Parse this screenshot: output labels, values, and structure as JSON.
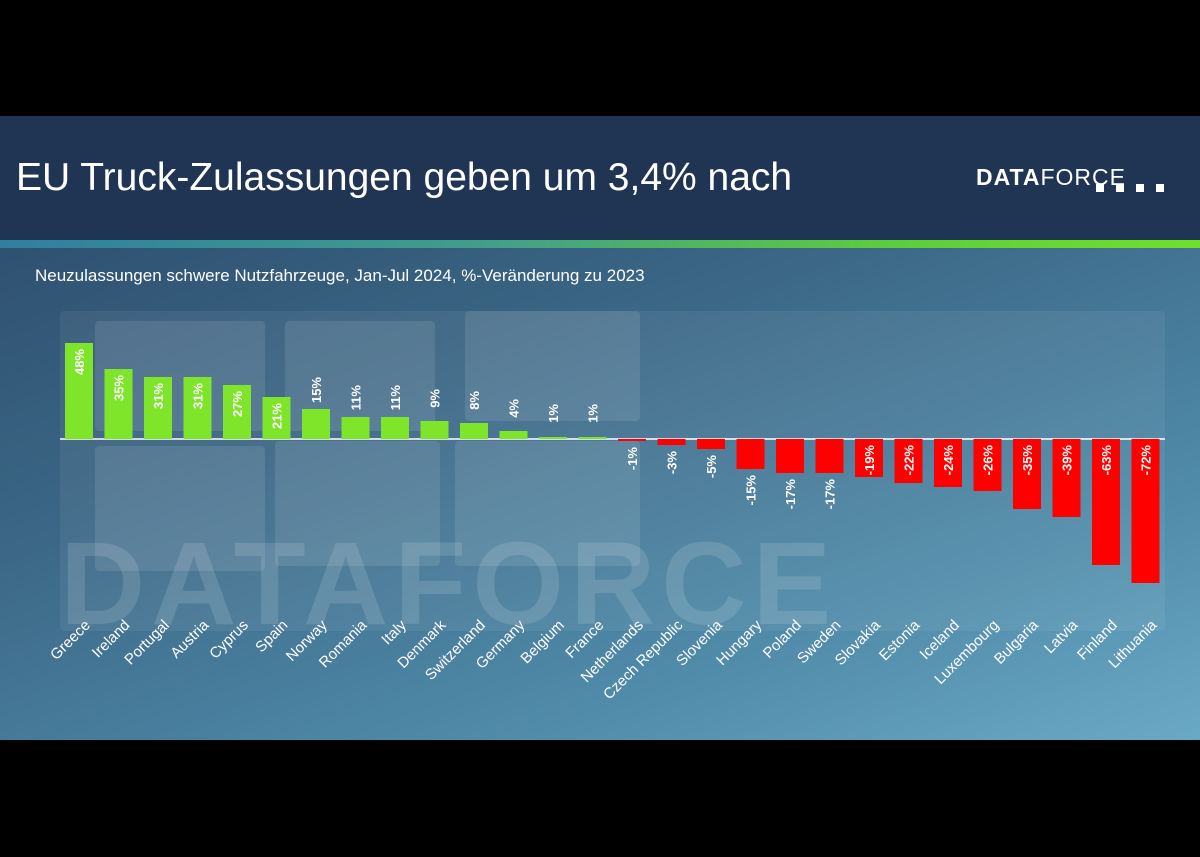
{
  "slide": {
    "title": "EU Truck-Zulassungen geben um 3,4% nach",
    "logo_bold": "DATA",
    "logo_light": "FORCE",
    "subtitle": "Neuzulassungen schwere Nutzfahrzeuge, Jan-Jul 2024, %-Veränderung zu 2023",
    "watermark": "DATAFORCE"
  },
  "colors": {
    "positive": "#7ee52a",
    "negative": "#ff0000",
    "header_bg": "#1f3553"
  },
  "chart_data": {
    "type": "bar",
    "title": "Neuzulassungen schwere Nutzfahrzeuge, Jan-Jul 2024, %-Veränderung zu 2023",
    "xlabel": "",
    "ylabel": "",
    "ylim": [
      -75,
      50
    ],
    "grid": false,
    "categories": [
      "Greece",
      "Ireland",
      "Portugal",
      "Austria",
      "Cyprus",
      "Spain",
      "Norway",
      "Romania",
      "Italy",
      "Denmark",
      "Switzerland",
      "Germany",
      "Belgium",
      "France",
      "Netherlands",
      "Czech Republic",
      "Slovenia",
      "Hungary",
      "Poland",
      "Sweden",
      "Slovakia",
      "Estonia",
      "Iceland",
      "Luxembourg",
      "Bulgaria",
      "Latvia",
      "Finland",
      "Lithuania"
    ],
    "values": [
      48,
      35,
      31,
      31,
      27,
      21,
      15,
      11,
      11,
      9,
      8,
      4,
      1,
      1,
      -1,
      -3,
      -5,
      -15,
      -17,
      -17,
      -19,
      -22,
      -24,
      -26,
      -35,
      -39,
      -63,
      -72
    ],
    "labels": [
      "48%",
      "35%",
      "31%",
      "31%",
      "27%",
      "21%",
      "15%",
      "11%",
      "11%",
      "9%",
      "8%",
      "4%",
      "1%",
      "1%",
      "-1%",
      "-3%",
      "-5%",
      "-15%",
      "-17%",
      "-17%",
      "-19%",
      "-22%",
      "-24%",
      "-26%",
      "-35%",
      "-39%",
      "-63%",
      "-72%"
    ]
  }
}
